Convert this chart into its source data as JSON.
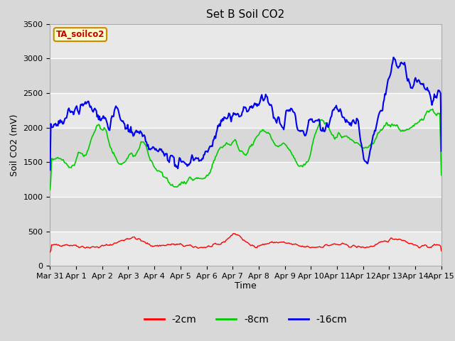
{
  "title": "Set B Soil CO2",
  "ylabel": "Soil CO2 (mV)",
  "xlabel": "Time",
  "box_label": "TA_soilco2",
  "legend_labels": [
    "-2cm",
    "-8cm",
    "-16cm"
  ],
  "legend_colors": [
    "#ff0000",
    "#00cc00",
    "#0000ee"
  ],
  "ylim": [
    0,
    3500
  ],
  "yticks": [
    0,
    500,
    1000,
    1500,
    2000,
    2500,
    3000,
    3500
  ],
  "xtick_labels": [
    "Mar 31",
    "Apr 1",
    "Apr 2",
    "Apr 3",
    "Apr 4",
    "Apr 5",
    "Apr 6",
    "Apr 7",
    "Apr 8",
    "Apr 9",
    "Apr 10",
    "Apr 11",
    "Apr 12",
    "Apr 13",
    "Apr 14",
    "Apr 15"
  ],
  "fig_bg_color": "#d8d8d8",
  "plot_bg_color": "#e8e8e8",
  "band_light": "#e8e8e8",
  "band_dark": "#d8d8d8",
  "grid_color": "#ffffff",
  "n_points": 500,
  "seed": 42
}
